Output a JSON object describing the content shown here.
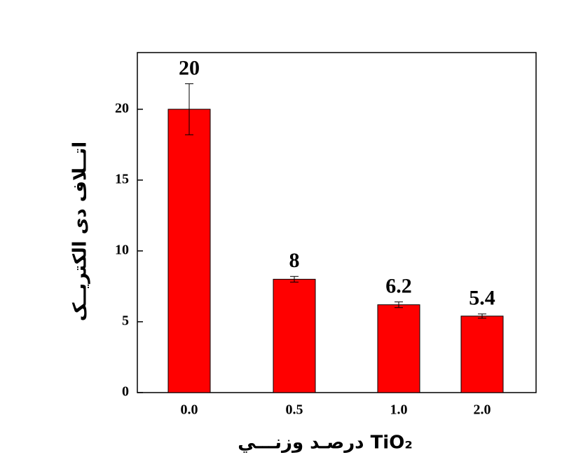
{
  "chart_data": {
    "type": "bar",
    "xlabel": "درصـد وزنـــي TiO₂",
    "ylabel": "اتــلاف دی الکتریــک",
    "categories": [
      "0.0",
      "0.5",
      "1.0",
      "2.0"
    ],
    "values": [
      20,
      8,
      6.2,
      5.4
    ],
    "errors": [
      1.8,
      0.2,
      0.2,
      0.15
    ],
    "color": "#ff0000",
    "ylim": [
      0,
      24
    ],
    "yticks": [
      0,
      5,
      10,
      15,
      20
    ]
  }
}
